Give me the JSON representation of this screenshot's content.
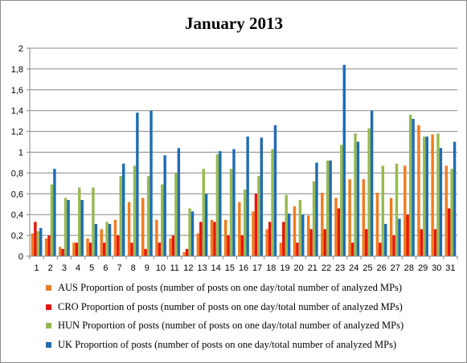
{
  "chart_data": {
    "type": "bar",
    "title": "January 2013",
    "categories": [
      "1",
      "2",
      "3",
      "4",
      "5",
      "6",
      "7",
      "8",
      "9",
      "10",
      "11",
      "12",
      "13",
      "14",
      "15",
      "16",
      "17",
      "18",
      "19",
      "20",
      "21",
      "22",
      "23",
      "24",
      "25",
      "26",
      "27",
      "28",
      "29",
      "30",
      "31"
    ],
    "ylim": [
      0,
      2
    ],
    "yticks": [
      "0",
      "0,2",
      "0,4",
      "0,6",
      "0,8",
      "1",
      "1,2",
      "1,4",
      "1,6",
      "1,8",
      "2"
    ],
    "grid": true,
    "legend_position": "bottom",
    "series": [
      {
        "name": "AUS Proportion of posts (number of posts on one day/total number of analyzed MPs)",
        "color": "#f07b1f",
        "values": [
          0.22,
          0.17,
          0.09,
          0.13,
          0.17,
          0.26,
          0.35,
          0.52,
          0.56,
          0.35,
          0.17,
          0.04,
          0.22,
          0.35,
          0.35,
          0.52,
          0.43,
          0.26,
          0.13,
          0.48,
          0.39,
          0.61,
          0.56,
          0.74,
          0.74,
          0.61,
          0.56,
          0.87,
          1.26,
          1.17,
          0.87
        ]
      },
      {
        "name": "CRO Proportion of posts (number of posts on one day/total number of analyzed MPs)",
        "color": "#e8150e",
        "values": [
          0.33,
          0.2,
          0.07,
          0.13,
          0.13,
          0.13,
          0.2,
          0.13,
          0.07,
          0.13,
          0.2,
          0.07,
          0.33,
          0.33,
          0.2,
          0.2,
          0.6,
          0.33,
          0.33,
          0.13,
          0.26,
          0.26,
          0.46,
          0.13,
          0.26,
          0.13,
          0.2,
          0.4,
          0.26,
          0.26,
          0.46
        ]
      },
      {
        "name": "HUN Proportion of posts (number of posts on one day/total number of analyzed MPs)",
        "color": "#97ba50",
        "values": [
          0.24,
          0.69,
          0.56,
          0.66,
          0.66,
          0.33,
          0.77,
          0.87,
          0.77,
          0.69,
          0.8,
          0.46,
          0.84,
          0.98,
          0.84,
          0.64,
          0.77,
          1.03,
          0.59,
          0.54,
          0.72,
          0.92,
          1.07,
          1.18,
          1.23,
          0.87,
          0.89,
          1.36,
          1.15,
          1.18,
          0.84
        ]
      },
      {
        "name": "UK Proportion of posts (number of posts on one day/total number of analyzed MPs)",
        "color": "#1f6cb3",
        "values": [
          0.27,
          0.84,
          0.54,
          0.54,
          0.31,
          0.31,
          0.89,
          1.38,
          1.4,
          0.97,
          1.04,
          0.43,
          0.6,
          1.01,
          1.03,
          1.15,
          1.14,
          1.26,
          0.41,
          0.4,
          0.9,
          0.92,
          1.84,
          1.1,
          1.4,
          0.31,
          0.36,
          1.32,
          1.15,
          1.04,
          1.1
        ]
      }
    ]
  }
}
